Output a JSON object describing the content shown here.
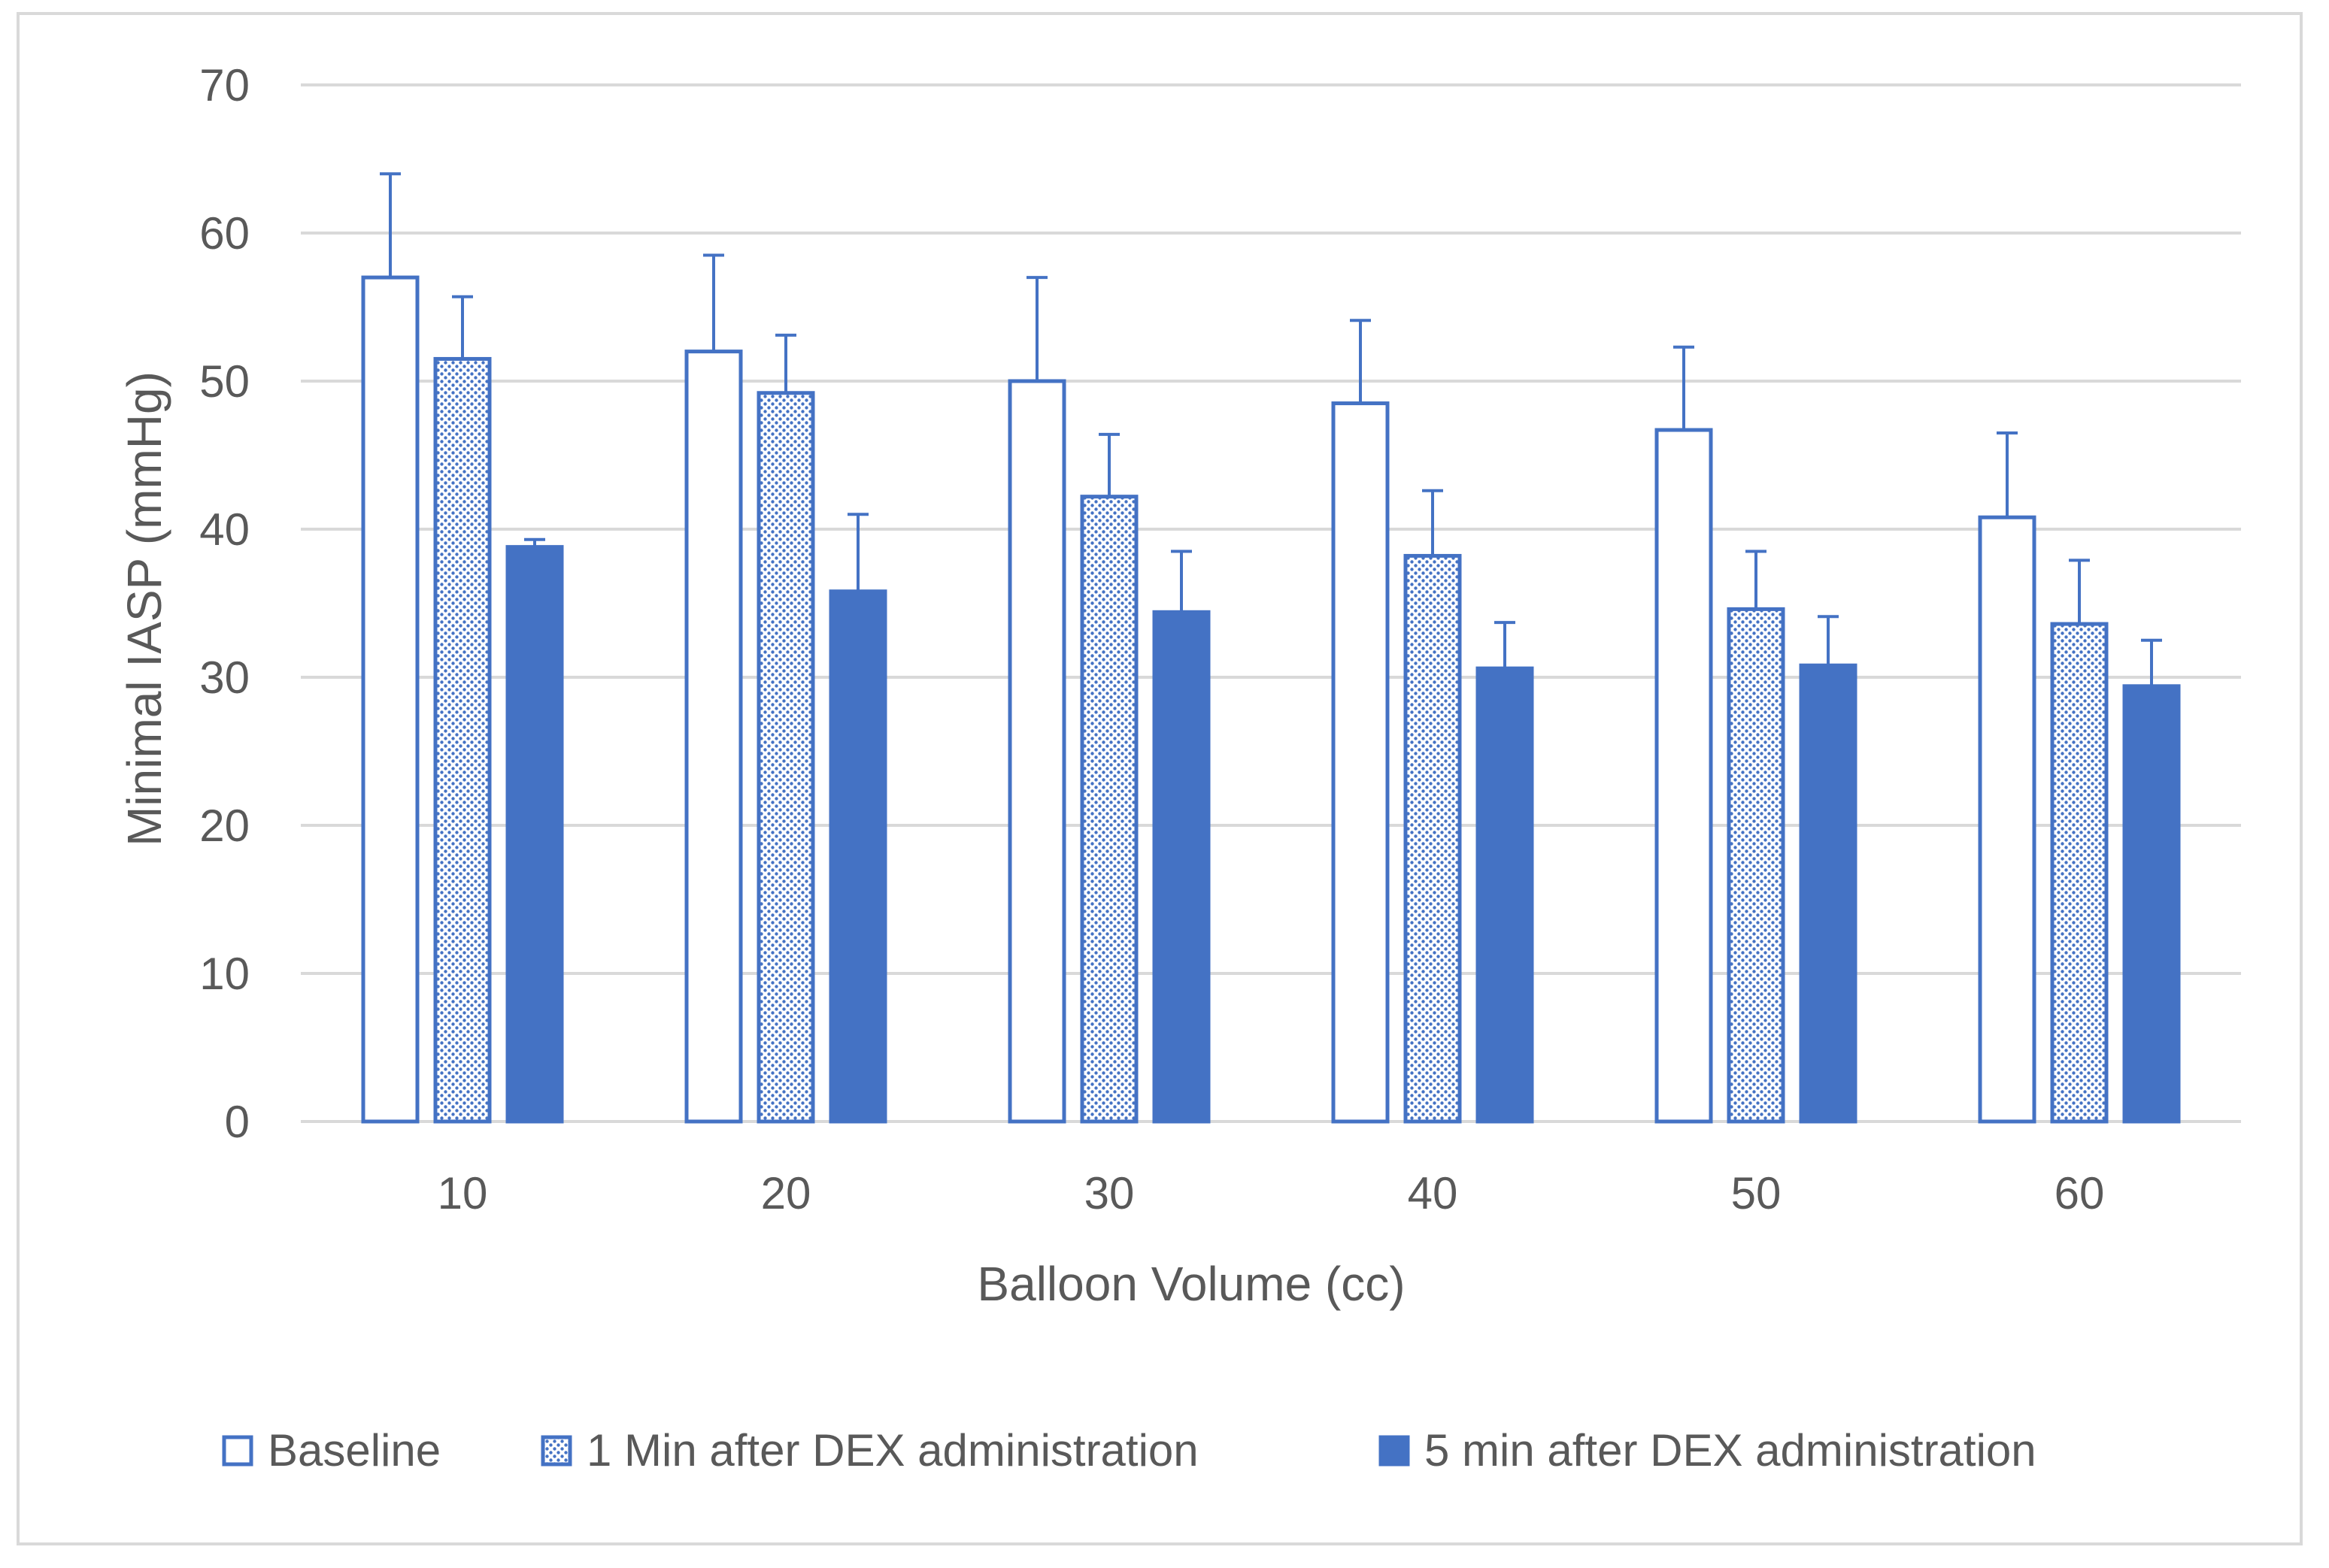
{
  "chart_data": {
    "type": "bar",
    "title": "",
    "xlabel": "Balloon Volume (cc)",
    "ylabel": "Minimal  IASP (mmHg)",
    "ylim": [
      0,
      70
    ],
    "yticks": [
      0,
      10,
      20,
      30,
      40,
      50,
      60,
      70
    ],
    "grid": true,
    "legend_position": "bottom",
    "categories": [
      "10",
      "20",
      "30",
      "40",
      "50",
      "60"
    ],
    "series": [
      {
        "name": "Baseline",
        "style": "outline",
        "values": [
          57,
          52,
          50,
          48.5,
          46.7,
          40.8
        ],
        "error_upper": [
          7,
          6.5,
          7,
          5.6,
          5.6,
          5.7
        ]
      },
      {
        "name": "1 Min after DEX administration",
        "style": "dotted",
        "values": [
          51.5,
          49.2,
          42.2,
          38.2,
          34.6,
          33.6
        ],
        "error_upper": [
          4.2,
          3.9,
          4.2,
          4.4,
          3.9,
          4.3
        ]
      },
      {
        "name": "5 min after DEX administration",
        "style": "solid",
        "values": [
          38.8,
          35.8,
          34.4,
          30.6,
          30.8,
          29.4
        ],
        "error_upper": [
          0.5,
          5.2,
          4.1,
          3.1,
          3.3,
          3.1
        ]
      }
    ],
    "colors": {
      "series": "#4472c4",
      "grid": "#d9d9d9",
      "text": "#595959"
    }
  }
}
